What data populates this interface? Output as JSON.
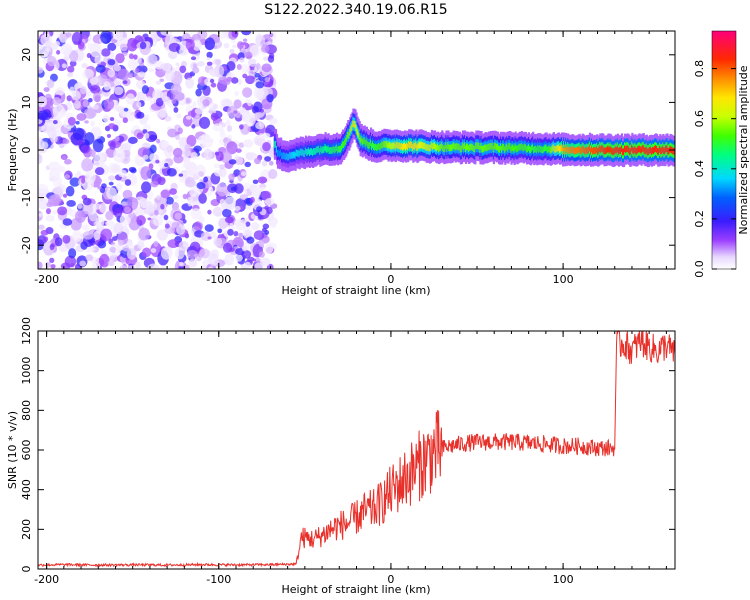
{
  "title": "S122.2022.340.19.06.R15",
  "chart_data": [
    {
      "type": "heatmap",
      "xlabel": "Height of straight line (km)",
      "ylabel": "Frequency (Hz)",
      "xlim": [
        -205,
        165
      ],
      "ylim": [
        -25,
        25
      ],
      "xticks": [
        -200,
        -100,
        0,
        100
      ],
      "yticks": [
        -20,
        -10,
        0,
        10,
        20
      ],
      "colorbar": {
        "label": "Normalized spectral amplitude",
        "range": [
          0.0,
          0.95
        ],
        "ticks": [
          0.0,
          0.2,
          0.4,
          0.6,
          0.8
        ]
      },
      "noise_region_x": [
        -205,
        -68
      ],
      "ridge": [
        {
          "x": -68,
          "freq": 1.5,
          "amp": 0.45
        },
        {
          "x": -66,
          "freq": -0.8,
          "amp": 0.3
        },
        {
          "x": -60,
          "freq": -1.2,
          "amp": 0.35
        },
        {
          "x": -50,
          "freq": -0.5,
          "amp": 0.4
        },
        {
          "x": -40,
          "freq": 0.2,
          "amp": 0.45
        },
        {
          "x": -30,
          "freq": 0.3,
          "amp": 0.5
        },
        {
          "x": -25,
          "freq": 3.0,
          "amp": 0.55
        },
        {
          "x": -22,
          "freq": 6.0,
          "amp": 0.65
        },
        {
          "x": -18,
          "freq": 2.0,
          "amp": 0.55
        },
        {
          "x": -10,
          "freq": 0.8,
          "amp": 0.5
        },
        {
          "x": 0,
          "freq": 1.0,
          "amp": 0.6
        },
        {
          "x": 10,
          "freq": 0.9,
          "amp": 0.7
        },
        {
          "x": 30,
          "freq": 0.6,
          "amp": 0.55
        },
        {
          "x": 60,
          "freq": 0.5,
          "amp": 0.55
        },
        {
          "x": 90,
          "freq": 0.3,
          "amp": 0.5
        },
        {
          "x": 100,
          "freq": 0.1,
          "amp": 0.75
        },
        {
          "x": 130,
          "freq": 0.0,
          "amp": 0.85
        },
        {
          "x": 165,
          "freq": 0.0,
          "amp": 0.85
        }
      ]
    },
    {
      "type": "line",
      "xlabel": "Height of straight line (km)",
      "ylabel": "SNR (10 * v/v)",
      "xlim": [
        -205,
        165
      ],
      "ylim": [
        0,
        1200
      ],
      "xticks": [
        -200,
        -100,
        0,
        100
      ],
      "yticks": [
        0,
        200,
        400,
        600,
        800,
        1000,
        1200
      ],
      "series": [
        {
          "color": "#e8302a",
          "x": [
            -205,
            -190,
            -170,
            -150,
            -130,
            -110,
            -90,
            -70,
            -55,
            -52,
            -45,
            -40,
            -35,
            -30,
            -25,
            -20,
            -15,
            -10,
            -5,
            0,
            5,
            10,
            15,
            20,
            25,
            30,
            40,
            50,
            60,
            70,
            80,
            90,
            100,
            110,
            120,
            130,
            131,
            135,
            140,
            145,
            150,
            155,
            160,
            165
          ],
          "y": [
            20,
            22,
            20,
            21,
            20,
            22,
            21,
            22,
            25,
            160,
            150,
            170,
            200,
            220,
            230,
            260,
            290,
            300,
            340,
            390,
            430,
            470,
            510,
            550,
            590,
            610,
            630,
            640,
            640,
            640,
            635,
            630,
            620,
            620,
            610,
            610,
            1130,
            1140,
            1100,
            1150,
            1120,
            1100,
            1130,
            1080
          ]
        }
      ]
    }
  ]
}
